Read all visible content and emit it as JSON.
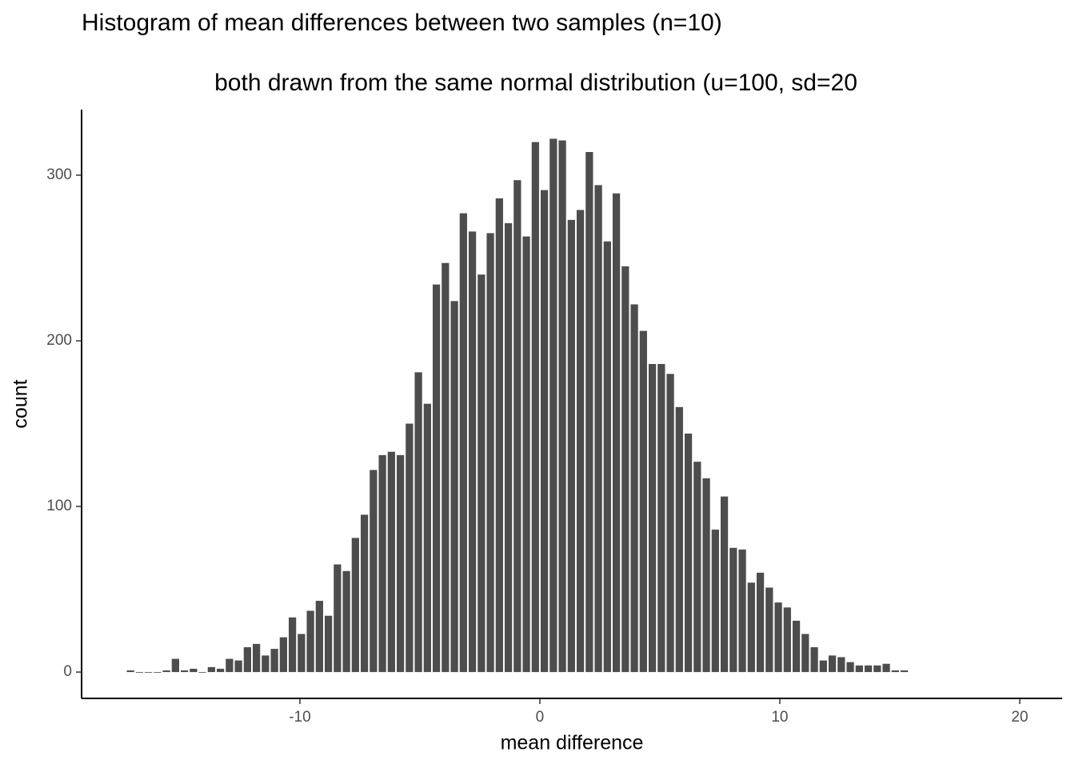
{
  "chart_data": {
    "type": "histogram",
    "title": "Histogram of mean differences between two samples (n=10)",
    "subtitle": "both drawn from the same normal distribution (u=100, sd=20",
    "x_label": "mean difference",
    "y_label": "count",
    "color": "#4d4d4d",
    "bins": [
      -17.25,
      -16.875,
      -16.5,
      -16.125,
      -15.75,
      -15.375,
      -15,
      -14.625,
      -14.25,
      -13.875,
      -13.5,
      -13.125,
      -12.75,
      -12.375,
      -12,
      -11.625,
      -11.25,
      -10.875,
      -10.5,
      -10.125,
      -9.75,
      -9.375,
      -9,
      -8.625,
      -8.25,
      -7.875,
      -7.5,
      -7.125,
      -6.75,
      -6.375,
      -6,
      -5.625,
      -5.25,
      -4.875,
      -4.5,
      -4.125,
      -3.75,
      -3.375,
      -3,
      -2.625,
      -2.25,
      -1.875,
      -1.5,
      -1.125,
      -0.75,
      -0.375,
      0,
      0.375,
      0.75,
      1.125,
      1.5,
      1.875,
      2.25,
      2.625,
      3,
      3.375,
      3.75,
      4.125,
      4.5,
      4.875,
      5.25,
      5.625,
      6,
      6.375,
      6.75,
      7.125,
      7.5,
      7.875,
      8.25,
      8.625,
      9,
      9.375,
      9.75,
      10.125,
      10.5,
      10.875,
      11.25,
      11.625,
      12,
      12.375,
      12.75,
      13.125,
      13.5,
      13.875,
      14.25,
      14.625,
      15,
      15.375
    ],
    "values": [
      1,
      0,
      0,
      0,
      1,
      8,
      1,
      2,
      0,
      3,
      2,
      8,
      7,
      15,
      17,
      10,
      14,
      21,
      33,
      23,
      37,
      43,
      34,
      65,
      61,
      81,
      95,
      122,
      131,
      133,
      131,
      150,
      181,
      162,
      234,
      247,
      224,
      277,
      266,
      240,
      265,
      286,
      271,
      297,
      263,
      320,
      291,
      322,
      321,
      273,
      279,
      314,
      294,
      260,
      289,
      245,
      222,
      206,
      186,
      186,
      180,
      160,
      144,
      127,
      117,
      86,
      106,
      75,
      74,
      54,
      60,
      51,
      42,
      39,
      31,
      23,
      15,
      7,
      10,
      9,
      6,
      4,
      4,
      4,
      5,
      1,
      1
    ],
    "xlim": [
      -19.1,
      21.77
    ],
    "ylim": [
      -15.9,
      339.6
    ],
    "xticks": [
      -10,
      0,
      10,
      20
    ],
    "yticks": [
      0,
      100,
      200,
      300
    ]
  }
}
